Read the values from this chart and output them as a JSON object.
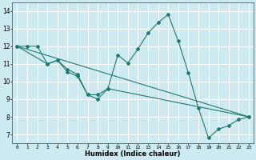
{
  "xlabel": "Humidex (Indice chaleur)",
  "background_color": "#cdeaf0",
  "line_color": "#1e7a6e",
  "grid_color": "#b8d8e0",
  "xlim": [
    -0.5,
    23.5
  ],
  "ylim": [
    6.5,
    14.5
  ],
  "xticks": [
    0,
    1,
    2,
    3,
    4,
    5,
    6,
    7,
    8,
    9,
    10,
    11,
    12,
    13,
    14,
    15,
    16,
    17,
    18,
    19,
    20,
    21,
    22,
    23
  ],
  "yticks": [
    7,
    8,
    9,
    10,
    11,
    12,
    13,
    14
  ],
  "line1": [
    [
      0,
      12.0
    ],
    [
      1,
      12.0
    ],
    [
      2,
      12.0
    ],
    [
      3,
      11.0
    ],
    [
      4,
      11.2
    ],
    [
      5,
      10.7
    ],
    [
      6,
      10.4
    ],
    [
      7,
      9.25
    ],
    [
      8,
      9.25
    ],
    [
      9,
      9.6
    ],
    [
      10,
      11.5
    ],
    [
      11,
      11.05
    ],
    [
      12,
      11.85
    ],
    [
      13,
      12.75
    ],
    [
      14,
      13.35
    ],
    [
      15,
      13.8
    ],
    [
      16,
      12.3
    ],
    [
      17,
      10.5
    ],
    [
      18,
      8.5
    ],
    [
      19,
      6.8
    ],
    [
      20,
      7.3
    ],
    [
      21,
      7.5
    ],
    [
      22,
      7.85
    ],
    [
      23,
      8.0
    ]
  ],
  "line2": [
    [
      0,
      12.0
    ],
    [
      3,
      11.0
    ],
    [
      4,
      11.2
    ],
    [
      5,
      10.55
    ],
    [
      6,
      10.3
    ],
    [
      7,
      9.25
    ],
    [
      8,
      9.0
    ],
    [
      9,
      9.6
    ],
    [
      23,
      8.0
    ]
  ],
  "line3": [
    [
      0,
      12.0
    ],
    [
      23,
      8.0
    ]
  ]
}
